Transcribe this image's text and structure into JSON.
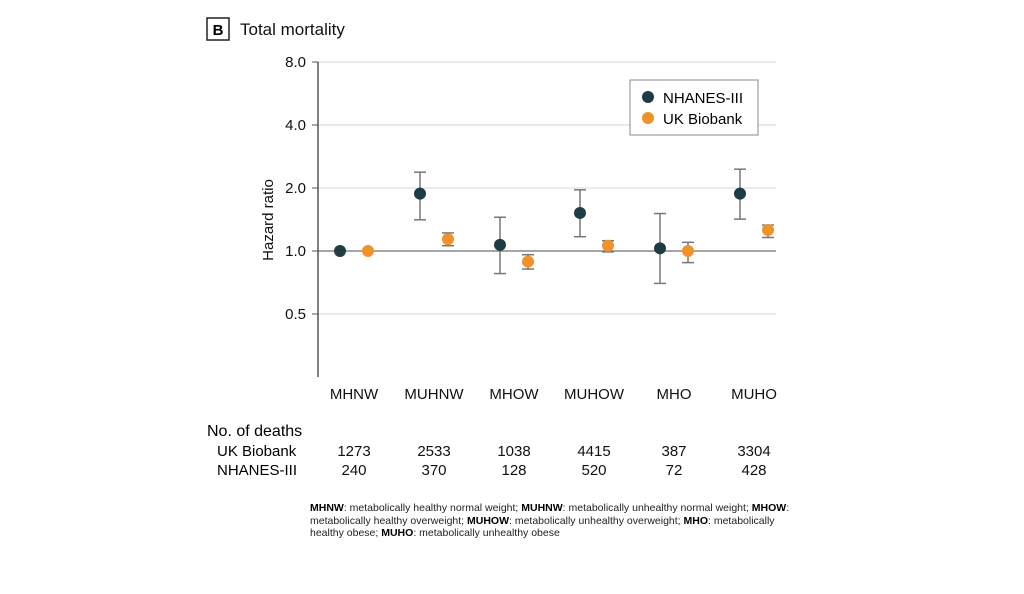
{
  "panel_letter": "B",
  "chart_data": {
    "type": "scatter",
    "title": "Total mortality",
    "ylabel": "Hazard ratio",
    "xlabel": "",
    "yscale": "log2",
    "ylim": [
      0.25,
      8.0
    ],
    "yticks": [
      "0.5",
      "1.0",
      "2.0",
      "4.0",
      "8.0"
    ],
    "ytick_values": [
      0.5,
      1.0,
      2.0,
      4.0,
      8.0
    ],
    "categories": [
      "MHNW",
      "MUHNW",
      "MHOW",
      "MUHOW",
      "MHO",
      "MUHO"
    ],
    "reference_line": 1.0,
    "legend_position": "top-right",
    "series": [
      {
        "name": "NHANES-III",
        "color": "#1f3b44",
        "values": [
          1.0,
          1.88,
          1.07,
          1.52,
          1.03,
          1.88
        ],
        "ci_low": [
          null,
          1.41,
          0.78,
          1.17,
          0.7,
          1.42
        ],
        "ci_high": [
          null,
          2.38,
          1.45,
          1.96,
          1.51,
          2.46
        ]
      },
      {
        "name": "UK Biobank",
        "color": "#f0922b",
        "values": [
          1.0,
          1.14,
          0.89,
          1.06,
          1.0,
          1.26
        ],
        "ci_low": [
          null,
          1.06,
          0.82,
          0.99,
          0.88,
          1.16
        ],
        "ci_high": [
          null,
          1.22,
          0.96,
          1.12,
          1.1,
          1.33
        ]
      }
    ]
  },
  "deaths_table": {
    "header": "No. of deaths",
    "rows": [
      {
        "label": "UK Biobank",
        "values": [
          "1273",
          "2533",
          "1038",
          "4415",
          "387",
          "3304"
        ]
      },
      {
        "label": "NHANES-III",
        "values": [
          "240",
          "370",
          "128",
          "520",
          "72",
          "428"
        ]
      }
    ]
  },
  "footnote": [
    {
      "abbr": "MHNW",
      "text": ": metabolically healthy normal weight; "
    },
    {
      "abbr": "MUHNW",
      "text": ": metabolically unhealthy normal weight; "
    },
    {
      "abbr": "MHOW",
      "text": ": metabolically healthy overweight; "
    },
    {
      "abbr": "MUHOW",
      "text": ": metabolically unhealthy overweight; "
    },
    {
      "abbr": "MHO",
      "text": ": metabolically healthy obese; "
    },
    {
      "abbr": "MUHO",
      "text": ": metabolically unhealthy obese"
    }
  ]
}
